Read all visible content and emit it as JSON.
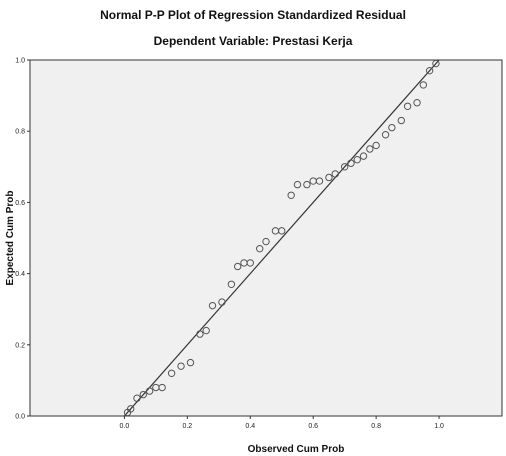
{
  "chart_data": {
    "type": "scatter",
    "title": "Normal P-P Plot of Regression Standardized Residual",
    "subtitle": "Dependent Variable: Prestasi Kerja",
    "xlabel": "Observed Cum Prob",
    "ylabel": "Expected Cum Prob",
    "xlim": [
      -0.3,
      1.2
    ],
    "ylim": [
      0.0,
      1.0
    ],
    "xticks": [
      "0.0",
      "0.2",
      "0.4",
      "0.6",
      "0.8",
      "1.0"
    ],
    "yticks": [
      "0.0",
      "0.2",
      "0.4",
      "0.6",
      "0.8",
      "1.0"
    ],
    "reference_line": [
      [
        0.0,
        0.0
      ],
      [
        1.0,
        1.0
      ]
    ],
    "grid": false,
    "plot_background": "#f0f0f0",
    "point_marker": "open-circle",
    "points": [
      {
        "x": 0.01,
        "y": 0.01
      },
      {
        "x": 0.02,
        "y": 0.02
      },
      {
        "x": 0.04,
        "y": 0.05
      },
      {
        "x": 0.06,
        "y": 0.06
      },
      {
        "x": 0.08,
        "y": 0.07
      },
      {
        "x": 0.1,
        "y": 0.08
      },
      {
        "x": 0.12,
        "y": 0.08
      },
      {
        "x": 0.15,
        "y": 0.12
      },
      {
        "x": 0.18,
        "y": 0.14
      },
      {
        "x": 0.21,
        "y": 0.15
      },
      {
        "x": 0.24,
        "y": 0.23
      },
      {
        "x": 0.26,
        "y": 0.24
      },
      {
        "x": 0.28,
        "y": 0.31
      },
      {
        "x": 0.31,
        "y": 0.32
      },
      {
        "x": 0.34,
        "y": 0.37
      },
      {
        "x": 0.36,
        "y": 0.42
      },
      {
        "x": 0.38,
        "y": 0.43
      },
      {
        "x": 0.4,
        "y": 0.43
      },
      {
        "x": 0.43,
        "y": 0.47
      },
      {
        "x": 0.45,
        "y": 0.49
      },
      {
        "x": 0.48,
        "y": 0.52
      },
      {
        "x": 0.5,
        "y": 0.52
      },
      {
        "x": 0.53,
        "y": 0.62
      },
      {
        "x": 0.55,
        "y": 0.65
      },
      {
        "x": 0.58,
        "y": 0.65
      },
      {
        "x": 0.6,
        "y": 0.66
      },
      {
        "x": 0.62,
        "y": 0.66
      },
      {
        "x": 0.65,
        "y": 0.67
      },
      {
        "x": 0.67,
        "y": 0.68
      },
      {
        "x": 0.7,
        "y": 0.7
      },
      {
        "x": 0.72,
        "y": 0.71
      },
      {
        "x": 0.74,
        "y": 0.72
      },
      {
        "x": 0.76,
        "y": 0.73
      },
      {
        "x": 0.78,
        "y": 0.75
      },
      {
        "x": 0.8,
        "y": 0.76
      },
      {
        "x": 0.83,
        "y": 0.79
      },
      {
        "x": 0.85,
        "y": 0.81
      },
      {
        "x": 0.88,
        "y": 0.83
      },
      {
        "x": 0.9,
        "y": 0.87
      },
      {
        "x": 0.93,
        "y": 0.88
      },
      {
        "x": 0.95,
        "y": 0.93
      },
      {
        "x": 0.97,
        "y": 0.97
      },
      {
        "x": 0.99,
        "y": 0.99
      }
    ]
  }
}
